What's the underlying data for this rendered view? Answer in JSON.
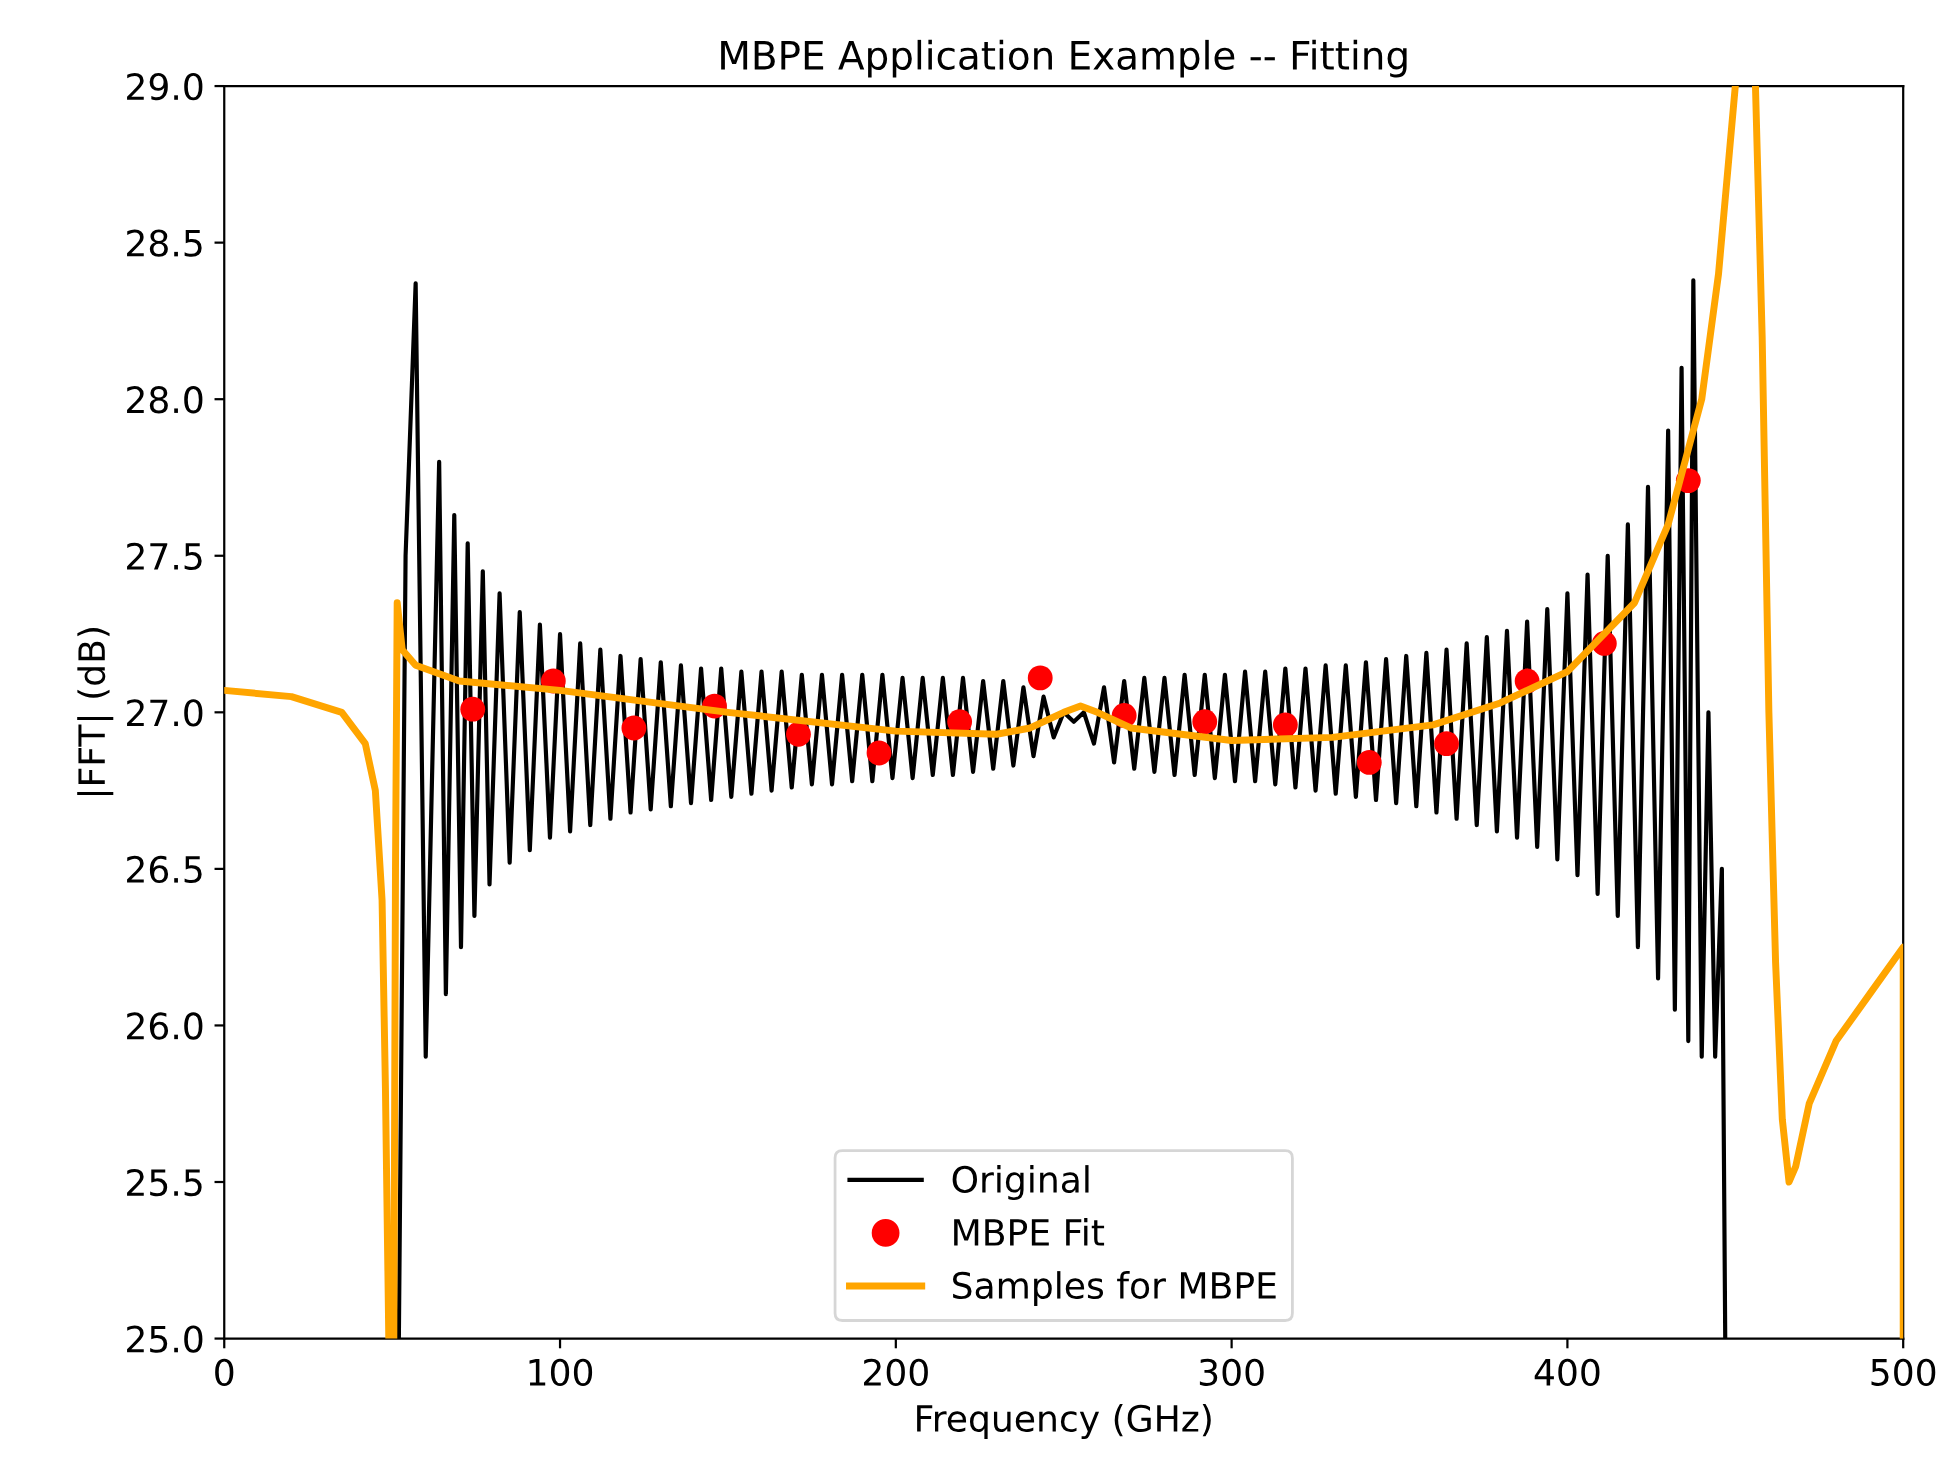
{
  "chart_data": {
    "type": "line",
    "title": "MBPE Application Example -- Fitting",
    "xlabel": "Frequency (GHz)",
    "ylabel": "|FFT| (dB)",
    "xlim": [
      0,
      500
    ],
    "ylim": [
      25,
      29
    ],
    "xticks": [
      0,
      100,
      200,
      300,
      400,
      500
    ],
    "yticks": [
      {
        "value": 25,
        "label": "25.0"
      },
      25.5,
      {
        "value": 26,
        "label": "26.0"
      },
      26.5,
      {
        "value": 27,
        "label": "27.0"
      },
      27.5,
      {
        "value": 28,
        "label": "28.0"
      },
      28.5,
      {
        "value": 29,
        "label": "29.0"
      }
    ],
    "grid": false,
    "legend": "bottom",
    "series": [
      {
        "name": "Original",
        "color": "#000000",
        "line_style": "solid",
        "x": [
          52,
          54,
          57,
          60,
          64,
          66,
          68.5,
          70.5,
          72.5,
          74.5,
          77,
          79,
          82,
          85,
          88,
          91,
          94,
          97,
          100,
          103,
          106,
          109,
          112,
          115,
          118,
          121,
          124,
          127,
          130,
          133,
          136,
          139,
          142,
          145,
          148,
          151,
          154,
          157,
          160,
          163,
          166,
          169,
          172,
          175,
          178,
          181,
          184,
          187,
          190,
          193,
          196,
          199,
          202,
          205,
          208,
          211,
          214,
          217,
          220,
          223,
          226,
          229,
          232,
          235,
          238,
          241,
          244,
          247,
          250,
          253,
          256,
          259,
          262,
          265,
          268,
          271,
          274,
          277,
          280,
          283,
          286,
          289,
          292,
          295,
          298,
          301,
          304,
          307,
          310,
          313,
          316,
          319,
          322,
          325,
          328,
          331,
          334,
          337,
          340,
          343,
          346,
          349,
          352,
          355,
          358,
          361,
          364,
          367,
          370,
          373,
          376,
          379,
          382,
          385,
          388,
          391,
          394,
          397,
          400,
          403,
          406,
          409,
          412,
          415,
          418,
          421,
          424,
          427,
          430,
          432,
          434,
          436,
          437.5,
          440,
          442,
          444,
          446,
          447
        ],
        "values": [
          25.0,
          27.5,
          28.37,
          25.9,
          27.8,
          26.1,
          27.63,
          26.25,
          27.54,
          26.35,
          27.45,
          26.45,
          27.38,
          26.52,
          27.32,
          26.56,
          27.28,
          26.6,
          27.25,
          26.62,
          27.22,
          26.64,
          27.2,
          26.66,
          27.18,
          26.68,
          27.17,
          26.69,
          27.16,
          26.7,
          27.15,
          26.71,
          27.14,
          26.72,
          27.14,
          26.73,
          27.13,
          26.74,
          27.13,
          26.75,
          27.13,
          26.76,
          27.12,
          26.77,
          27.12,
          26.77,
          27.12,
          26.78,
          27.12,
          26.78,
          27.12,
          26.79,
          27.11,
          26.79,
          27.11,
          26.8,
          27.11,
          26.8,
          27.11,
          26.81,
          27.1,
          26.82,
          27.1,
          26.83,
          27.08,
          26.86,
          27.05,
          26.92,
          27.0,
          26.97,
          27.0,
          26.9,
          27.08,
          26.84,
          27.1,
          26.82,
          27.11,
          26.81,
          27.11,
          26.8,
          27.12,
          26.8,
          27.12,
          26.79,
          27.12,
          26.78,
          27.13,
          26.78,
          27.13,
          26.77,
          27.14,
          26.76,
          27.14,
          26.75,
          27.15,
          26.74,
          27.15,
          26.73,
          27.16,
          26.72,
          27.17,
          26.71,
          27.18,
          26.7,
          27.19,
          26.68,
          27.2,
          26.66,
          27.22,
          26.64,
          27.24,
          26.62,
          27.26,
          26.6,
          27.29,
          26.57,
          27.33,
          26.53,
          27.38,
          26.48,
          27.44,
          26.42,
          27.5,
          26.35,
          27.6,
          26.25,
          27.72,
          26.15,
          27.9,
          26.05,
          28.1,
          25.95,
          28.38,
          25.9,
          27.0,
          25.9,
          26.5,
          25.0
        ]
      },
      {
        "name": "MBPE Fit",
        "type": "scatter",
        "color": "#ff0000",
        "marker": "circle",
        "x": [
          74,
          98,
          122,
          146,
          171,
          195,
          219,
          243,
          268,
          292,
          316,
          341,
          364,
          388,
          411,
          436
        ],
        "values": [
          27.01,
          27.1,
          26.95,
          27.02,
          26.93,
          26.87,
          26.97,
          27.11,
          26.99,
          26.97,
          26.96,
          26.84,
          26.9,
          27.1,
          27.22,
          27.74
        ]
      },
      {
        "name": "Samples for MBPE",
        "color": "#ffa500",
        "line_style": "solid",
        "x": [
          0,
          20,
          35,
          42,
          45,
          47,
          48,
          49,
          49.7,
          50.5,
          51,
          51.5,
          53,
          57,
          70,
          100,
          150,
          200,
          230,
          240,
          250,
          255,
          260,
          270,
          300,
          330,
          360,
          380,
          400,
          420,
          430,
          440,
          445,
          450,
          453,
          456,
          458,
          460,
          462,
          464,
          466,
          468,
          472,
          480,
          490,
          500,
          500
        ],
        "values": [
          27.07,
          27.05,
          27.0,
          26.9,
          26.75,
          26.4,
          25.8,
          25.0,
          null,
          25.0,
          26.5,
          27.35,
          27.2,
          27.15,
          27.1,
          27.07,
          27.0,
          26.94,
          26.93,
          26.95,
          27.0,
          27.02,
          27.0,
          26.95,
          26.91,
          26.92,
          26.96,
          27.03,
          27.13,
          27.35,
          27.6,
          28.0,
          28.4,
          29.0,
          null,
          29.0,
          28.2,
          27.0,
          26.2,
          25.7,
          25.5,
          25.55,
          25.75,
          25.95,
          26.1,
          26.25,
          25.0
        ]
      }
    ]
  }
}
